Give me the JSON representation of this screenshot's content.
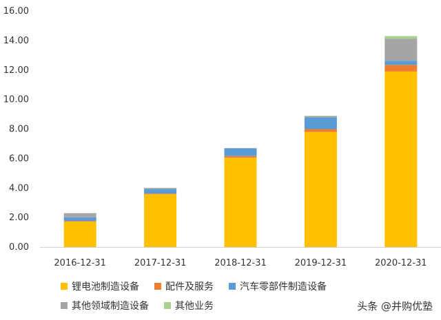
{
  "chart_data": {
    "type": "bar",
    "stacked": true,
    "categories": [
      "2016-12-31",
      "2017-12-31",
      "2018-12-31",
      "2019-12-31",
      "2020-12-31"
    ],
    "ylim": [
      0,
      16
    ],
    "yticks": [
      "0.00",
      "2.00",
      "4.00",
      "6.00",
      "8.00",
      "10.00",
      "12.00",
      "14.00",
      "16.00"
    ],
    "grid": false,
    "legend_position": "bottom",
    "series": [
      {
        "name": "锂电池制造设备",
        "color": "#FFC000",
        "values": [
          1.72,
          3.58,
          6.05,
          7.8,
          11.9
        ]
      },
      {
        "name": "配件及服务",
        "color": "#ED7D31",
        "values": [
          0.05,
          0.05,
          0.12,
          0.2,
          0.45
        ]
      },
      {
        "name": "汽车零部件制造设备",
        "color": "#5B9BD5",
        "values": [
          0.25,
          0.3,
          0.52,
          0.8,
          0.28
        ]
      },
      {
        "name": "其他领域制造设备",
        "color": "#A5A5A5",
        "values": [
          0.28,
          0.08,
          0.02,
          0.08,
          1.5
        ]
      },
      {
        "name": "其他业务",
        "color": "#A9D18E",
        "values": [
          0.0,
          0.0,
          0.0,
          0.02,
          0.17
        ]
      }
    ]
  },
  "watermark": "头条 @并购优塾"
}
